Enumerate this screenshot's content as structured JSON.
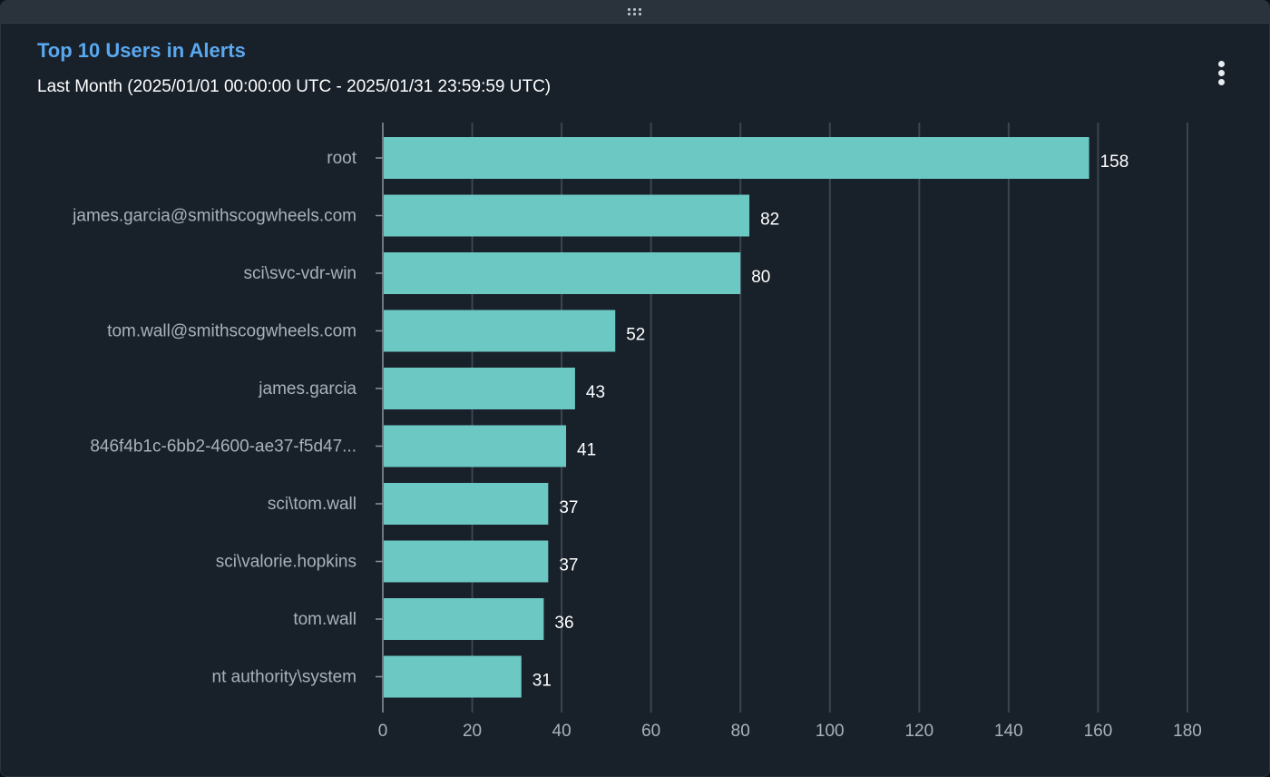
{
  "panel": {
    "title": "Top 10 Users in Alerts",
    "subtitle": "Last Month (2025/01/01 00:00:00 UTC - 2025/01/31 23:59:59 UTC)",
    "menu_icon": "kebab-menu-icon",
    "drag_icon": "drag-handle-icon"
  },
  "colors": {
    "title": "#5aa8f0",
    "bar": "#6cc8c3",
    "grid": "#3b4450",
    "background": "#18202a"
  },
  "chart_data": {
    "type": "bar",
    "orientation": "horizontal",
    "title": "Top 10 Users in Alerts",
    "subtitle": "Last Month (2025/01/01 00:00:00 UTC - 2025/01/31 23:59:59 UTC)",
    "categories": [
      "root",
      "james.garcia@smithscogwheels.com",
      "sci\\svc-vdr-win",
      "tom.wall@smithscogwheels.com",
      "james.garcia",
      "846f4b1c-6bb2-4600-ae37-f5d47...",
      "sci\\tom.wall",
      "sci\\valorie.hopkins",
      "tom.wall",
      "nt authority\\system"
    ],
    "values": [
      158,
      82,
      80,
      52,
      43,
      41,
      37,
      37,
      36,
      31
    ],
    "xlim": [
      0,
      180
    ],
    "xticks": [
      0,
      20,
      40,
      60,
      80,
      100,
      120,
      140,
      160,
      180
    ],
    "xlabel": "",
    "ylabel": "",
    "grid": true,
    "data_labels": true
  }
}
